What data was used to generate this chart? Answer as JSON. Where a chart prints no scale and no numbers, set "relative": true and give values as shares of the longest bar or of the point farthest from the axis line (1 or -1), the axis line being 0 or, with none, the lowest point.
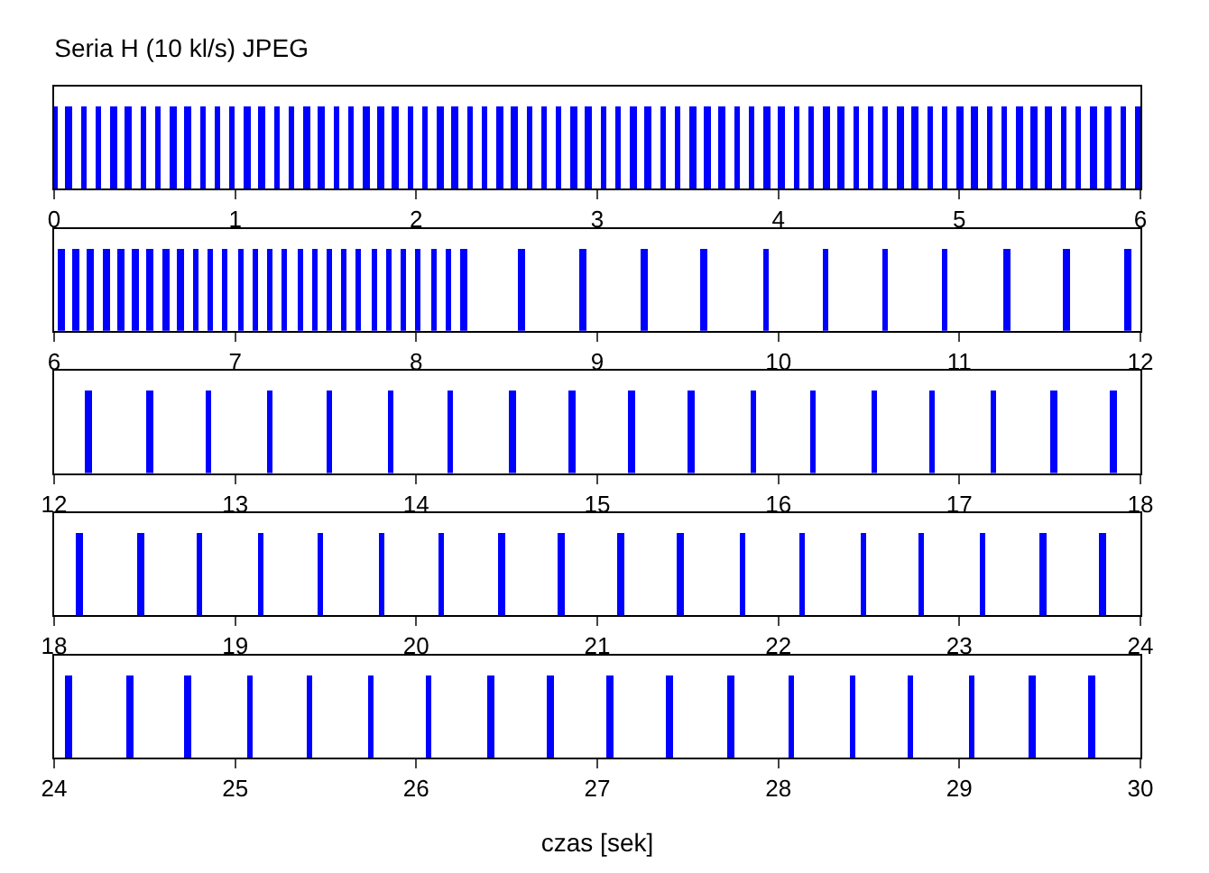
{
  "chart_data": [
    {
      "type": "bar",
      "title": "Seria H (10 kl/s) JPEG",
      "relative": true,
      "color": "#0000ff",
      "xlim": [
        0,
        6
      ],
      "xticks": [
        0,
        1,
        2,
        3,
        4,
        5,
        6
      ],
      "x": [
        0,
        0.082,
        0.164,
        0.246,
        0.328,
        0.41,
        0.492,
        0.574,
        0.656,
        0.738,
        0.82,
        0.902,
        0.984,
        1.066,
        1.148,
        1.23,
        1.312,
        1.394,
        1.476,
        1.558,
        1.64,
        1.722,
        1.804,
        1.886,
        1.968,
        2.05,
        2.132,
        2.214,
        2.296,
        2.378,
        2.46,
        2.542,
        2.624,
        2.706,
        2.788,
        2.87,
        2.952,
        3.034,
        3.116,
        3.198,
        3.28,
        3.362,
        3.444,
        3.526,
        3.608,
        3.69,
        3.772,
        3.854,
        3.936,
        4.018,
        4.1,
        4.182,
        4.264,
        4.346,
        4.428,
        4.51,
        4.592,
        4.674,
        4.756,
        4.838,
        4.92,
        5.002,
        5.084,
        5.166,
        5.248,
        5.33,
        5.412,
        5.494,
        5.576,
        5.658,
        5.74,
        5.822,
        5.904,
        5.986
      ],
      "values": [
        1,
        1,
        1,
        1,
        1,
        1,
        1,
        1,
        1,
        1,
        1,
        1,
        1,
        1,
        1,
        1,
        1,
        1,
        1,
        1,
        1,
        1,
        1,
        1,
        1,
        1,
        1,
        1,
        1,
        1,
        1,
        1,
        1,
        1,
        1,
        1,
        1,
        1,
        1,
        1,
        1,
        1,
        1,
        1,
        1,
        1,
        1,
        1,
        1,
        1,
        1,
        1,
        1,
        1,
        1,
        1,
        1,
        1,
        1,
        1,
        1,
        1,
        1,
        1,
        1,
        1,
        1,
        1,
        1,
        1,
        1,
        1,
        1,
        1
      ]
    },
    {
      "type": "bar",
      "relative": true,
      "color": "#0000ff",
      "xlim": [
        6,
        12
      ],
      "xticks": [
        6,
        7,
        8,
        9,
        10,
        11,
        12
      ],
      "x": [
        6.04,
        6.12,
        6.2,
        6.29,
        6.37,
        6.45,
        6.53,
        6.62,
        6.7,
        6.78,
        6.86,
        6.94,
        7.03,
        7.11,
        7.19,
        7.27,
        7.36,
        7.44,
        7.52,
        7.6,
        7.68,
        7.77,
        7.85,
        7.93,
        8.01,
        8.1,
        8.18,
        8.26,
        8.58,
        8.92,
        9.26,
        9.59,
        9.93,
        10.26,
        10.59,
        10.92,
        11.26,
        11.59,
        11.93
      ],
      "values": [
        1,
        1,
        1,
        1,
        1,
        1,
        1,
        1,
        1,
        1,
        1,
        1,
        1,
        1,
        1,
        1,
        1,
        1,
        1,
        1,
        1,
        1,
        1,
        1,
        1,
        1,
        1,
        1,
        1,
        1,
        1,
        1,
        1,
        1,
        1,
        1,
        1,
        1,
        1
      ]
    },
    {
      "type": "bar",
      "relative": true,
      "color": "#0000ff",
      "xlim": [
        12,
        18
      ],
      "xticks": [
        12,
        13,
        14,
        15,
        16,
        17,
        18
      ],
      "x": [
        12.19,
        12.53,
        12.85,
        13.19,
        13.52,
        13.86,
        14.19,
        14.53,
        14.86,
        15.19,
        15.52,
        15.86,
        16.19,
        16.53,
        16.85,
        17.19,
        17.52,
        17.85
      ],
      "values": [
        1,
        1,
        1,
        1,
        1,
        1,
        1,
        1,
        1,
        1,
        1,
        1,
        1,
        1,
        1,
        1,
        1,
        1
      ]
    },
    {
      "type": "bar",
      "relative": true,
      "color": "#0000ff",
      "xlim": [
        18,
        24
      ],
      "xticks": [
        18,
        19,
        20,
        21,
        22,
        23,
        24
      ],
      "x": [
        18.14,
        18.48,
        18.8,
        19.14,
        19.47,
        19.81,
        20.14,
        20.47,
        20.8,
        21.13,
        21.46,
        21.8,
        22.13,
        22.47,
        22.79,
        23.13,
        23.46,
        23.79
      ],
      "values": [
        1,
        1,
        1,
        1,
        1,
        1,
        1,
        1,
        1,
        1,
        1,
        1,
        1,
        1,
        1,
        1,
        1,
        1
      ]
    },
    {
      "type": "bar",
      "relative": true,
      "color": "#0000ff",
      "xlim": [
        24,
        30
      ],
      "xticks": [
        24,
        25,
        26,
        27,
        28,
        29,
        30
      ],
      "xlabel": "czas [sek]",
      "x": [
        24.08,
        24.42,
        24.74,
        25.08,
        25.41,
        25.75,
        26.07,
        26.41,
        26.74,
        27.07,
        27.4,
        27.74,
        28.07,
        28.41,
        28.73,
        29.07,
        29.4,
        29.73
      ],
      "values": [
        1,
        1,
        1,
        1,
        1,
        1,
        1,
        1,
        1,
        1,
        1,
        1,
        1,
        1,
        1,
        1,
        1,
        1
      ]
    }
  ]
}
